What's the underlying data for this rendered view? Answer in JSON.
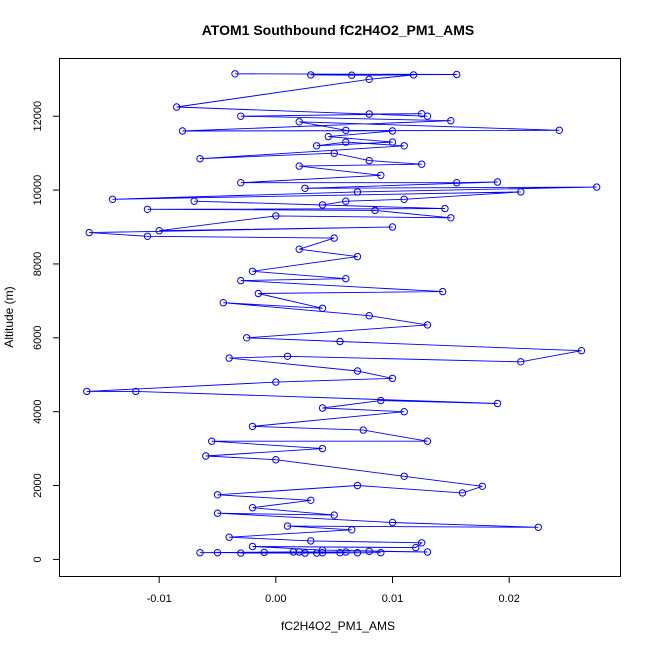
{
  "chart_data": {
    "type": "line",
    "title": "ATOM1 Southbound fC2H4O2_PM1_AMS",
    "xlabel": "fC2H4O2_PM1_AMS",
    "ylabel": "Altitude (m)",
    "xlim": [
      -0.0185,
      0.0295
    ],
    "ylim": [
      -450,
      13550
    ],
    "x_ticks": [
      -0.01,
      0.0,
      0.01,
      0.02
    ],
    "x_tick_labels": [
      "-0.01",
      "0.00",
      "0.01",
      "0.02"
    ],
    "y_ticks": [
      0,
      2000,
      4000,
      6000,
      8000,
      10000,
      12000
    ],
    "y_tick_labels": [
      "0",
      "2000",
      "4000",
      "6000",
      "8000",
      "10000",
      "12000"
    ],
    "grid": false,
    "legend": "none",
    "colors": {
      "series": "#0000ff",
      "axes": "#000000"
    },
    "series": [
      {
        "marker": "open-circle",
        "points": [
          [
            -0.0035,
            13150
          ],
          [
            0.0155,
            13130
          ],
          [
            0.003,
            13120
          ],
          [
            0.0065,
            13110
          ],
          [
            0.0118,
            13120
          ],
          [
            0.008,
            13000
          ],
          [
            -0.0085,
            12250
          ],
          [
            0.013,
            12000
          ],
          [
            0.008,
            12060
          ],
          [
            0.0125,
            12070
          ],
          [
            -0.003,
            12000
          ],
          [
            0.015,
            11880
          ],
          [
            -0.008,
            11600
          ],
          [
            0.0243,
            11620
          ],
          [
            0.002,
            11850
          ],
          [
            0.006,
            11620
          ],
          [
            0.01,
            11600
          ],
          [
            0.0045,
            11450
          ],
          [
            0.01,
            11300
          ],
          [
            0.0035,
            11200
          ],
          [
            0.006,
            11300
          ],
          [
            0.011,
            11200
          ],
          [
            -0.0065,
            10850
          ],
          [
            0.005,
            11000
          ],
          [
            0.008,
            10800
          ],
          [
            0.0125,
            10700
          ],
          [
            0.002,
            10650
          ],
          [
            0.009,
            10400
          ],
          [
            -0.003,
            10200
          ],
          [
            0.0155,
            10200
          ],
          [
            0.019,
            10220
          ],
          [
            0.0025,
            10050
          ],
          [
            0.0275,
            10080
          ],
          [
            0.007,
            9950
          ],
          [
            -0.014,
            9750
          ],
          [
            0.021,
            9950
          ],
          [
            0.011,
            9750
          ],
          [
            0.006,
            9700
          ],
          [
            0.004,
            9600
          ],
          [
            -0.007,
            9700
          ],
          [
            0.0145,
            9500
          ],
          [
            -0.011,
            9480
          ],
          [
            0.0085,
            9450
          ],
          [
            0.015,
            9250
          ],
          [
            0.0,
            9300
          ],
          [
            -0.01,
            8900
          ],
          [
            0.01,
            9000
          ],
          [
            -0.016,
            8850
          ],
          [
            -0.011,
            8750
          ],
          [
            0.005,
            8700
          ],
          [
            0.002,
            8400
          ],
          [
            0.007,
            8200
          ],
          [
            -0.002,
            7800
          ],
          [
            0.006,
            7600
          ],
          [
            -0.003,
            7550
          ],
          [
            0.0143,
            7250
          ],
          [
            -0.0015,
            7200
          ],
          [
            0.004,
            6800
          ],
          [
            -0.0045,
            6950
          ],
          [
            0.008,
            6600
          ],
          [
            0.013,
            6350
          ],
          [
            -0.0025,
            6000
          ],
          [
            0.0055,
            5900
          ],
          [
            0.0262,
            5650
          ],
          [
            0.021,
            5350
          ],
          [
            0.001,
            5500
          ],
          [
            -0.004,
            5450
          ],
          [
            0.007,
            5100
          ],
          [
            0.01,
            4900
          ],
          [
            0.0,
            4800
          ],
          [
            -0.0162,
            4550
          ],
          [
            -0.012,
            4550
          ],
          [
            0.019,
            4220
          ],
          [
            0.009,
            4300
          ],
          [
            0.004,
            4100
          ],
          [
            0.011,
            4000
          ],
          [
            -0.002,
            3600
          ],
          [
            0.0075,
            3500
          ],
          [
            0.013,
            3200
          ],
          [
            -0.0055,
            3200
          ],
          [
            0.004,
            3000
          ],
          [
            -0.006,
            2800
          ],
          [
            0.0,
            2700
          ],
          [
            0.011,
            2250
          ],
          [
            0.0177,
            1980
          ],
          [
            0.016,
            1800
          ],
          [
            0.007,
            2000
          ],
          [
            -0.005,
            1750
          ],
          [
            0.003,
            1600
          ],
          [
            -0.002,
            1400
          ],
          [
            0.005,
            1200
          ],
          [
            -0.005,
            1250
          ],
          [
            0.01,
            1000
          ],
          [
            0.0225,
            870
          ],
          [
            0.001,
            900
          ],
          [
            0.0065,
            800
          ],
          [
            -0.004,
            600
          ],
          [
            0.003,
            500
          ],
          [
            0.0125,
            450
          ],
          [
            0.012,
            320
          ],
          [
            -0.002,
            350
          ],
          [
            0.004,
            250
          ],
          [
            0.013,
            200
          ],
          [
            0.008,
            220
          ],
          [
            -0.0065,
            180
          ],
          [
            0.002,
            200
          ],
          [
            0.0055,
            180
          ],
          [
            -0.003,
            170
          ],
          [
            0.009,
            180
          ],
          [
            0.0035,
            170
          ],
          [
            0.0015,
            200
          ],
          [
            -0.005,
            180
          ],
          [
            0.007,
            180
          ],
          [
            -0.001,
            190
          ],
          [
            0.004,
            180
          ],
          [
            0.0025,
            170
          ],
          [
            0.006,
            200
          ]
        ]
      }
    ]
  }
}
